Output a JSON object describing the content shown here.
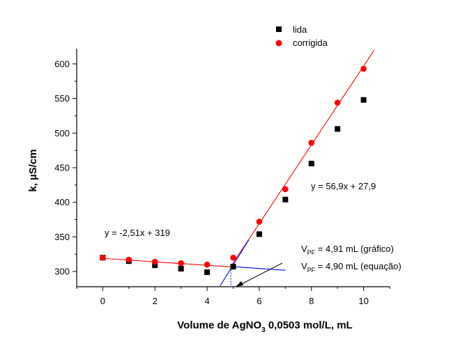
{
  "chart_data": {
    "type": "scatter",
    "xlabel_main": "Volume de AgNO",
    "xlabel_sub": "3",
    "xlabel_rest": " 0,0503 mol/L, mL",
    "ylabel": "k, µS/cm",
    "xlim": [
      -1,
      11
    ],
    "ylim": [
      278,
      622
    ],
    "x_ticks": [
      0,
      2,
      4,
      6,
      8,
      10
    ],
    "y_ticks": [
      300,
      350,
      400,
      450,
      500,
      550,
      600
    ],
    "grid": false,
    "legend_position": "top-center",
    "series": [
      {
        "name": "lida",
        "color": "#000000",
        "marker": "square",
        "points": [
          [
            0,
            320
          ],
          [
            1,
            315
          ],
          [
            2,
            309
          ],
          [
            3,
            304
          ],
          [
            4,
            299
          ],
          [
            5,
            307
          ],
          [
            6,
            354
          ],
          [
            7,
            404
          ],
          [
            8,
            456
          ],
          [
            9,
            506
          ],
          [
            10,
            548
          ]
        ]
      },
      {
        "name": "corrigida",
        "color": "#ff0000",
        "marker": "circle",
        "points": [
          [
            0,
            320
          ],
          [
            1,
            317
          ],
          [
            2,
            314
          ],
          [
            3,
            312
          ],
          [
            4,
            310
          ],
          [
            5,
            320
          ],
          [
            6,
            372
          ],
          [
            7,
            419
          ],
          [
            8,
            486
          ],
          [
            9,
            544
          ],
          [
            10,
            593
          ]
        ]
      }
    ],
    "lines": [
      {
        "label": "y = -2,51x + 319",
        "slope": -2.51,
        "intercept": 319,
        "x_range": [
          0,
          5
        ],
        "color": "#ff0000"
      },
      {
        "label": "y = 56,9x + 27,9",
        "slope": 56.9,
        "intercept": 27.9,
        "x_range": [
          4.95,
          10.4
        ],
        "color": "#ff0000"
      },
      {
        "label": "",
        "slope": -2.6,
        "intercept": 320,
        "x_range": [
          4.9,
          7.0
        ],
        "color": "#0000ff"
      },
      {
        "label": "",
        "slope": 60.5,
        "intercept": 7.0,
        "x_range": [
          4.5,
          5.6
        ],
        "color": "#0000ff"
      }
    ],
    "annotations": {
      "eq_left": "y = -2,51x + 319",
      "eq_right": "y = 56,9x + 27,9",
      "vpf_label": "V",
      "vpf_sub": "PF",
      "vpf_grafico": " = 4,91 mL (gráfico)",
      "vpf_equacao": " = 4,90 mL (equação)"
    },
    "intersection_x": 4.91
  }
}
